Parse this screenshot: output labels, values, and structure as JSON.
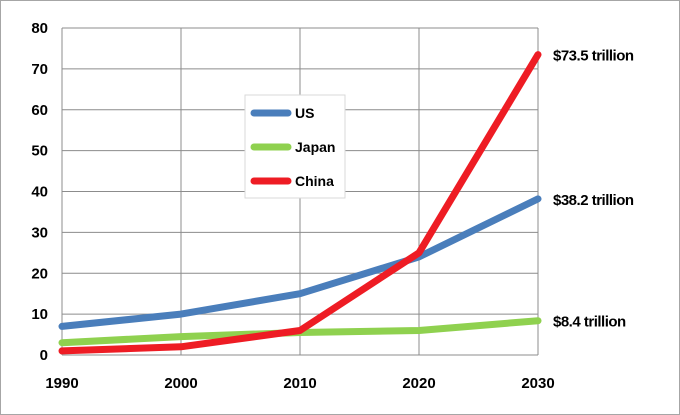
{
  "chart_data": {
    "type": "line",
    "x": [
      1990,
      2000,
      2010,
      2020,
      2030
    ],
    "xticks": [
      "1990",
      "2000",
      "2010",
      "2020",
      "2030"
    ],
    "yticks": [
      "0",
      "10",
      "20",
      "30",
      "40",
      "50",
      "60",
      "70",
      "80"
    ],
    "ylim": [
      0,
      80
    ],
    "xlim": [
      1990,
      2030
    ],
    "grid": true,
    "legend_position": "upper-center",
    "series": [
      {
        "name": "US",
        "color": "#4a7ebb",
        "values": [
          7,
          10,
          15,
          24,
          38.2
        ],
        "end_label": "$38.2 trillion"
      },
      {
        "name": "Japan",
        "color": "#8fd14f",
        "values": [
          3,
          4.5,
          5.5,
          6,
          8.4
        ],
        "end_label": "$8.4 trillion"
      },
      {
        "name": "China",
        "color": "#ee1c24",
        "values": [
          1,
          2,
          6,
          25,
          73.5
        ],
        "end_label": "$73.5 trillion"
      }
    ]
  }
}
